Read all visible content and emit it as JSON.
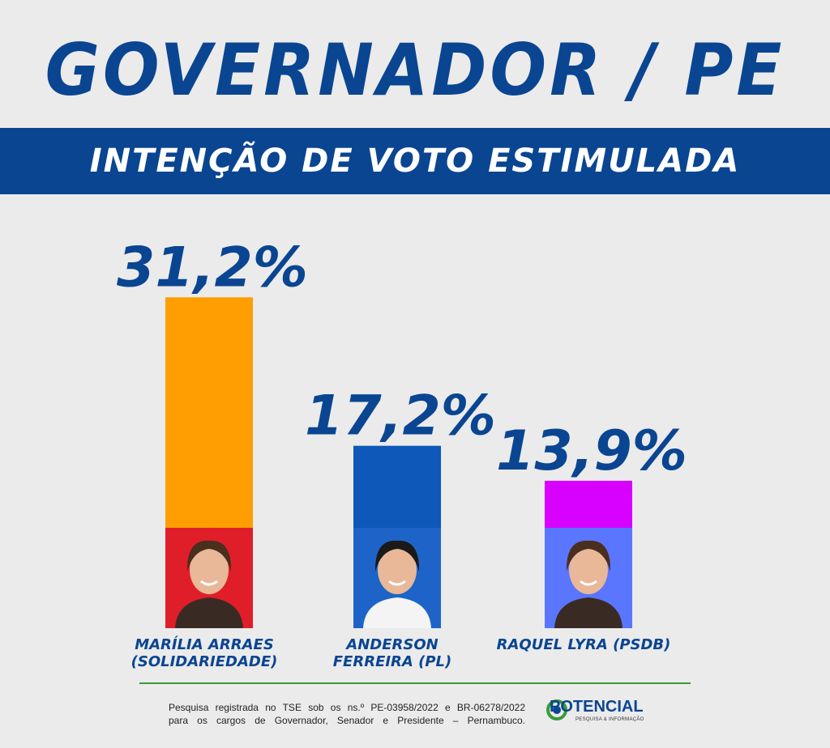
{
  "header": {
    "title": "GOVERNADOR / PE",
    "subtitle": "INTENÇÃO DE VOTO ESTIMULADA"
  },
  "chart_data": {
    "type": "bar",
    "categories": [
      "MARÍLIA ARRAES (SOLIDARIEDADE)",
      "ANDERSON FERREIRA (PL)",
      "RAQUEL LYRA (PSDB)"
    ],
    "values": [
      31.2,
      17.2,
      13.9
    ],
    "value_labels": [
      "31,2%",
      "17,2%",
      "13,9%"
    ],
    "name_lines": [
      [
        "MARÍLIA ARRAES",
        "(SOLIDARIEDADE)"
      ],
      [
        "ANDERSON",
        "FERREIRA (PL)"
      ],
      [
        "RAQUEL LYRA (PSDB)"
      ]
    ],
    "bar_colors": [
      "#ff9e00",
      "#0d58b8",
      "#d800ff"
    ],
    "photo_colors": [
      "#e01e2a",
      "#1e64c8",
      "#5a76ff"
    ],
    "title": "",
    "xlabel": "",
    "ylabel": "",
    "legend": "none",
    "grid": false
  },
  "footer": {
    "line1": "Pesquisa registrada no TSE sob os ns.º PE-03958/2022 e BR-06278/2022",
    "line2": "para os cargos de Governador, Senador e Presidente – Pernambuco.",
    "logo_name": "POTENCIAL",
    "logo_tag": "PESQUISA & INFORMAÇÃO"
  },
  "colors": {
    "primary": "#0a4592",
    "rule": "#3a9a3a",
    "background": "#ebebeb"
  }
}
